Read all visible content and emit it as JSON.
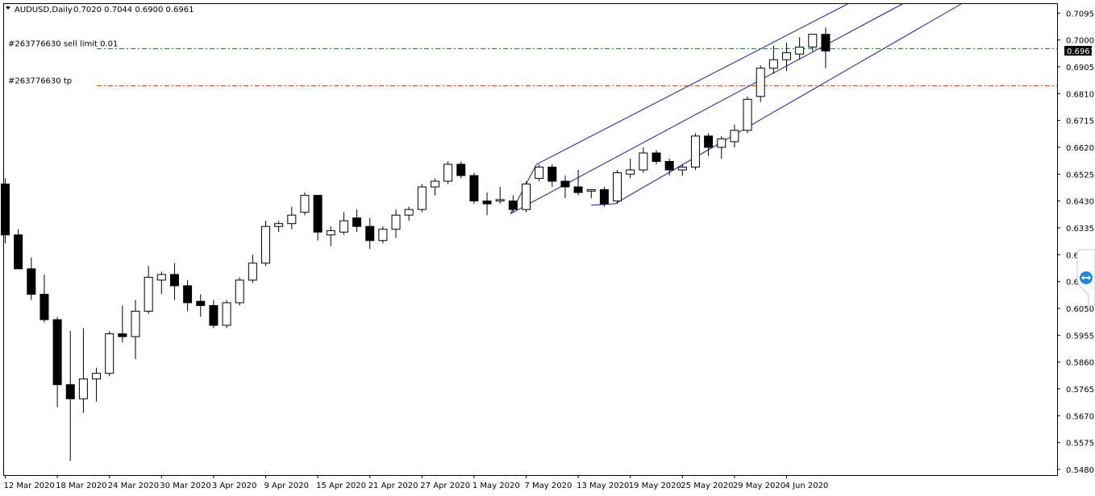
{
  "header": {
    "symbol": "AUDUSD,Daily",
    "ohlc": "0.7020 0.7044 0.6900 0.6961"
  },
  "current_price_label": "0.6961",
  "orders": [
    {
      "label": "#263776630 sell limit 0.01",
      "price": 0.697,
      "color": "#2e7d32",
      "style": "dashdot"
    },
    {
      "label": "#263776630 tp",
      "price": 0.684,
      "color": "#e0501e",
      "style": "dashdot"
    }
  ],
  "colors": {
    "bull_body": "#ffffff",
    "bear_body": "#000000",
    "wick": "#000000",
    "channel": "#1a1aa8",
    "frame": "#000000"
  },
  "chart_data": {
    "type": "candlestick",
    "title": "AUDUSD,Daily",
    "y_ticks": [
      "0.7095",
      "0.7000",
      "0.6905",
      "0.6810",
      "0.6715",
      "0.6620",
      "0.6525",
      "0.6430",
      "0.6335",
      "0.6240",
      "0.6145",
      "0.6050",
      "0.5955",
      "0.5860",
      "0.5765",
      "0.5670",
      "0.5575",
      "0.5480"
    ],
    "ylim": [
      0.546,
      0.713
    ],
    "x_labels": [
      "12 Mar 2020",
      "18 Mar 2020",
      "24 Mar 2020",
      "30 Mar 2020",
      "3 Apr 2020",
      "9 Apr 2020",
      "15 Apr 2020",
      "21 Apr 2020",
      "27 Apr 2020",
      "1 May 2020",
      "7 May 2020",
      "13 May 2020",
      "19 May 2020",
      "25 May 2020",
      "29 May 2020",
      "4 Jun 2020"
    ],
    "candles": [
      {
        "o": 0.649,
        "h": 0.651,
        "l": 0.628,
        "c": 0.631
      },
      {
        "o": 0.631,
        "h": 0.633,
        "l": 0.619,
        "c": 0.619
      },
      {
        "o": 0.619,
        "h": 0.623,
        "l": 0.608,
        "c": 0.61
      },
      {
        "o": 0.61,
        "h": 0.617,
        "l": 0.6,
        "c": 0.601
      },
      {
        "o": 0.601,
        "h": 0.602,
        "l": 0.57,
        "c": 0.578
      },
      {
        "o": 0.578,
        "h": 0.597,
        "l": 0.551,
        "c": 0.573
      },
      {
        "o": 0.573,
        "h": 0.598,
        "l": 0.568,
        "c": 0.58
      },
      {
        "o": 0.58,
        "h": 0.584,
        "l": 0.572,
        "c": 0.582
      },
      {
        "o": 0.582,
        "h": 0.597,
        "l": 0.581,
        "c": 0.596
      },
      {
        "o": 0.596,
        "h": 0.606,
        "l": 0.593,
        "c": 0.595
      },
      {
        "o": 0.595,
        "h": 0.608,
        "l": 0.587,
        "c": 0.604
      },
      {
        "o": 0.604,
        "h": 0.62,
        "l": 0.603,
        "c": 0.616
      },
      {
        "o": 0.615,
        "h": 0.618,
        "l": 0.61,
        "c": 0.617
      },
      {
        "o": 0.617,
        "h": 0.621,
        "l": 0.608,
        "c": 0.613
      },
      {
        "o": 0.613,
        "h": 0.615,
        "l": 0.604,
        "c": 0.607
      },
      {
        "o": 0.6075,
        "h": 0.61,
        "l": 0.602,
        "c": 0.606
      },
      {
        "o": 0.606,
        "h": 0.608,
        "l": 0.598,
        "c": 0.599
      },
      {
        "o": 0.599,
        "h": 0.608,
        "l": 0.598,
        "c": 0.607
      },
      {
        "o": 0.607,
        "h": 0.616,
        "l": 0.606,
        "c": 0.615
      },
      {
        "o": 0.615,
        "h": 0.624,
        "l": 0.614,
        "c": 0.621
      },
      {
        "o": 0.621,
        "h": 0.636,
        "l": 0.62,
        "c": 0.634
      },
      {
        "o": 0.634,
        "h": 0.636,
        "l": 0.632,
        "c": 0.635
      },
      {
        "o": 0.635,
        "h": 0.641,
        "l": 0.633,
        "c": 0.638
      },
      {
        "o": 0.639,
        "h": 0.646,
        "l": 0.638,
        "c": 0.645
      },
      {
        "o": 0.645,
        "h": 0.645,
        "l": 0.629,
        "c": 0.632
      },
      {
        "o": 0.631,
        "h": 0.634,
        "l": 0.627,
        "c": 0.6325
      },
      {
        "o": 0.632,
        "h": 0.639,
        "l": 0.631,
        "c": 0.636
      },
      {
        "o": 0.637,
        "h": 0.64,
        "l": 0.632,
        "c": 0.634
      },
      {
        "o": 0.634,
        "h": 0.637,
        "l": 0.626,
        "c": 0.629
      },
      {
        "o": 0.629,
        "h": 0.634,
        "l": 0.628,
        "c": 0.633
      },
      {
        "o": 0.633,
        "h": 0.64,
        "l": 0.63,
        "c": 0.638
      },
      {
        "o": 0.638,
        "h": 0.641,
        "l": 0.636,
        "c": 0.64
      },
      {
        "o": 0.64,
        "h": 0.649,
        "l": 0.639,
        "c": 0.648
      },
      {
        "o": 0.648,
        "h": 0.651,
        "l": 0.645,
        "c": 0.65
      },
      {
        "o": 0.65,
        "h": 0.657,
        "l": 0.649,
        "c": 0.656
      },
      {
        "o": 0.656,
        "h": 0.657,
        "l": 0.651,
        "c": 0.652
      },
      {
        "o": 0.652,
        "h": 0.653,
        "l": 0.642,
        "c": 0.643
      },
      {
        "o": 0.643,
        "h": 0.646,
        "l": 0.638,
        "c": 0.642
      },
      {
        "o": 0.643,
        "h": 0.648,
        "l": 0.642,
        "c": 0.6435
      },
      {
        "o": 0.643,
        "h": 0.645,
        "l": 0.639,
        "c": 0.64
      },
      {
        "o": 0.64,
        "h": 0.65,
        "l": 0.639,
        "c": 0.649
      },
      {
        "o": 0.651,
        "h": 0.656,
        "l": 0.65,
        "c": 0.655
      },
      {
        "o": 0.655,
        "h": 0.656,
        "l": 0.648,
        "c": 0.65
      },
      {
        "o": 0.65,
        "h": 0.652,
        "l": 0.644,
        "c": 0.648
      },
      {
        "o": 0.648,
        "h": 0.654,
        "l": 0.645,
        "c": 0.646
      },
      {
        "o": 0.6465,
        "h": 0.647,
        "l": 0.644,
        "c": 0.647
      },
      {
        "o": 0.647,
        "h": 0.648,
        "l": 0.641,
        "c": 0.642
      },
      {
        "o": 0.643,
        "h": 0.654,
        "l": 0.642,
        "c": 0.653
      },
      {
        "o": 0.6525,
        "h": 0.658,
        "l": 0.651,
        "c": 0.654
      },
      {
        "o": 0.654,
        "h": 0.662,
        "l": 0.653,
        "c": 0.66
      },
      {
        "o": 0.66,
        "h": 0.661,
        "l": 0.656,
        "c": 0.657
      },
      {
        "o": 0.657,
        "h": 0.658,
        "l": 0.652,
        "c": 0.654
      },
      {
        "o": 0.654,
        "h": 0.656,
        "l": 0.652,
        "c": 0.655
      },
      {
        "o": 0.655,
        "h": 0.667,
        "l": 0.654,
        "c": 0.666
      },
      {
        "o": 0.666,
        "h": 0.667,
        "l": 0.659,
        "c": 0.662
      },
      {
        "o": 0.662,
        "h": 0.666,
        "l": 0.658,
        "c": 0.665
      },
      {
        "o": 0.664,
        "h": 0.67,
        "l": 0.662,
        "c": 0.668
      },
      {
        "o": 0.668,
        "h": 0.68,
        "l": 0.667,
        "c": 0.679
      },
      {
        "o": 0.68,
        "h": 0.691,
        "l": 0.678,
        "c": 0.69
      },
      {
        "o": 0.69,
        "h": 0.698,
        "l": 0.688,
        "c": 0.693
      },
      {
        "o": 0.693,
        "h": 0.699,
        "l": 0.689,
        "c": 0.6955
      },
      {
        "o": 0.695,
        "h": 0.701,
        "l": 0.693,
        "c": 0.6975
      },
      {
        "o": 0.6975,
        "h": 0.702,
        "l": 0.696,
        "c": 0.702
      },
      {
        "o": 0.702,
        "h": 0.7044,
        "l": 0.69,
        "c": 0.6961
      }
    ],
    "channel_lines": [
      {
        "x1": 40.8,
        "y1": 0.656,
        "x2": 64.8,
        "y2": 0.713
      },
      {
        "x1": 38.8,
        "y1": 0.6385,
        "x2": 69.0,
        "y2": 0.713
      },
      {
        "x1": 46.8,
        "y1": 0.642,
        "x2": 73.5,
        "y2": 0.713
      },
      {
        "x1": 40.8,
        "y1": 0.656,
        "x2": 38.8,
        "y2": 0.6385
      },
      {
        "x1": 46.8,
        "y1": 0.642,
        "x2": 45.0,
        "y2": 0.6415
      }
    ],
    "grid": false,
    "legend": "none"
  }
}
